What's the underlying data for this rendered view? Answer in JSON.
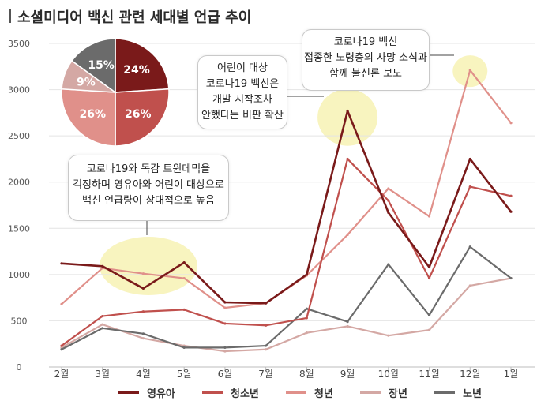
{
  "title": "소셜미디어 백신 관련  세대별 언급 추이",
  "colors": {
    "영유아": "#7a1a1a",
    "청소년": "#c0504d",
    "청년": "#e0908a",
    "장년": "#d4a8a4",
    "노년": "#6b6b6b",
    "highlight": "#f7f3b8"
  },
  "chart_data": {
    "type": "line",
    "categories": [
      "2월",
      "3월",
      "4월",
      "5월",
      "6월",
      "7월",
      "8월",
      "9월",
      "10월",
      "11월",
      "12월",
      "1월"
    ],
    "ylim": [
      0,
      3500
    ],
    "yticks": [
      0,
      500,
      1000,
      1500,
      2000,
      2500,
      3000,
      3500
    ],
    "grid": true,
    "legend_position": "bottom",
    "series": [
      {
        "name": "영유아",
        "values": [
          1120,
          1090,
          850,
          1130,
          700,
          690,
          1000,
          2770,
          1670,
          1080,
          2250,
          1680
        ]
      },
      {
        "name": "청소년",
        "values": [
          230,
          550,
          600,
          620,
          470,
          450,
          530,
          2250,
          1800,
          960,
          1950,
          1850
        ]
      },
      {
        "name": "청년",
        "values": [
          680,
          1070,
          1010,
          960,
          640,
          690,
          990,
          1430,
          1930,
          1630,
          3210,
          2640
        ]
      },
      {
        "name": "장년",
        "values": [
          210,
          460,
          310,
          230,
          170,
          190,
          370,
          440,
          340,
          400,
          880,
          960
        ]
      },
      {
        "name": "노년",
        "values": [
          190,
          420,
          360,
          210,
          210,
          230,
          630,
          490,
          1110,
          560,
          1300,
          960
        ]
      }
    ]
  },
  "pie": {
    "slices": [
      {
        "name": "영유아",
        "value": 24,
        "label": "24%"
      },
      {
        "name": "청소년",
        "value": 26,
        "label": "26%"
      },
      {
        "name": "청년",
        "value": 26,
        "label": "26%"
      },
      {
        "name": "장년",
        "value": 9,
        "label": "9%"
      },
      {
        "name": "노년",
        "value": 15,
        "label": "15%"
      }
    ]
  },
  "callouts": [
    {
      "text": "코로나19와 독감 트윈데믹을\n걱정하며 영유아와 어린이 대상으로\n백신 언급량이 상대적으로 높음"
    },
    {
      "text": "어린이 대상\n코로나19 백신은\n개발 시작조차\n안했다는 비판 확산"
    },
    {
      "text": "코로나19 백신\n접종한 노령층의 사망 소식과\n함께 불신론 보도"
    }
  ]
}
